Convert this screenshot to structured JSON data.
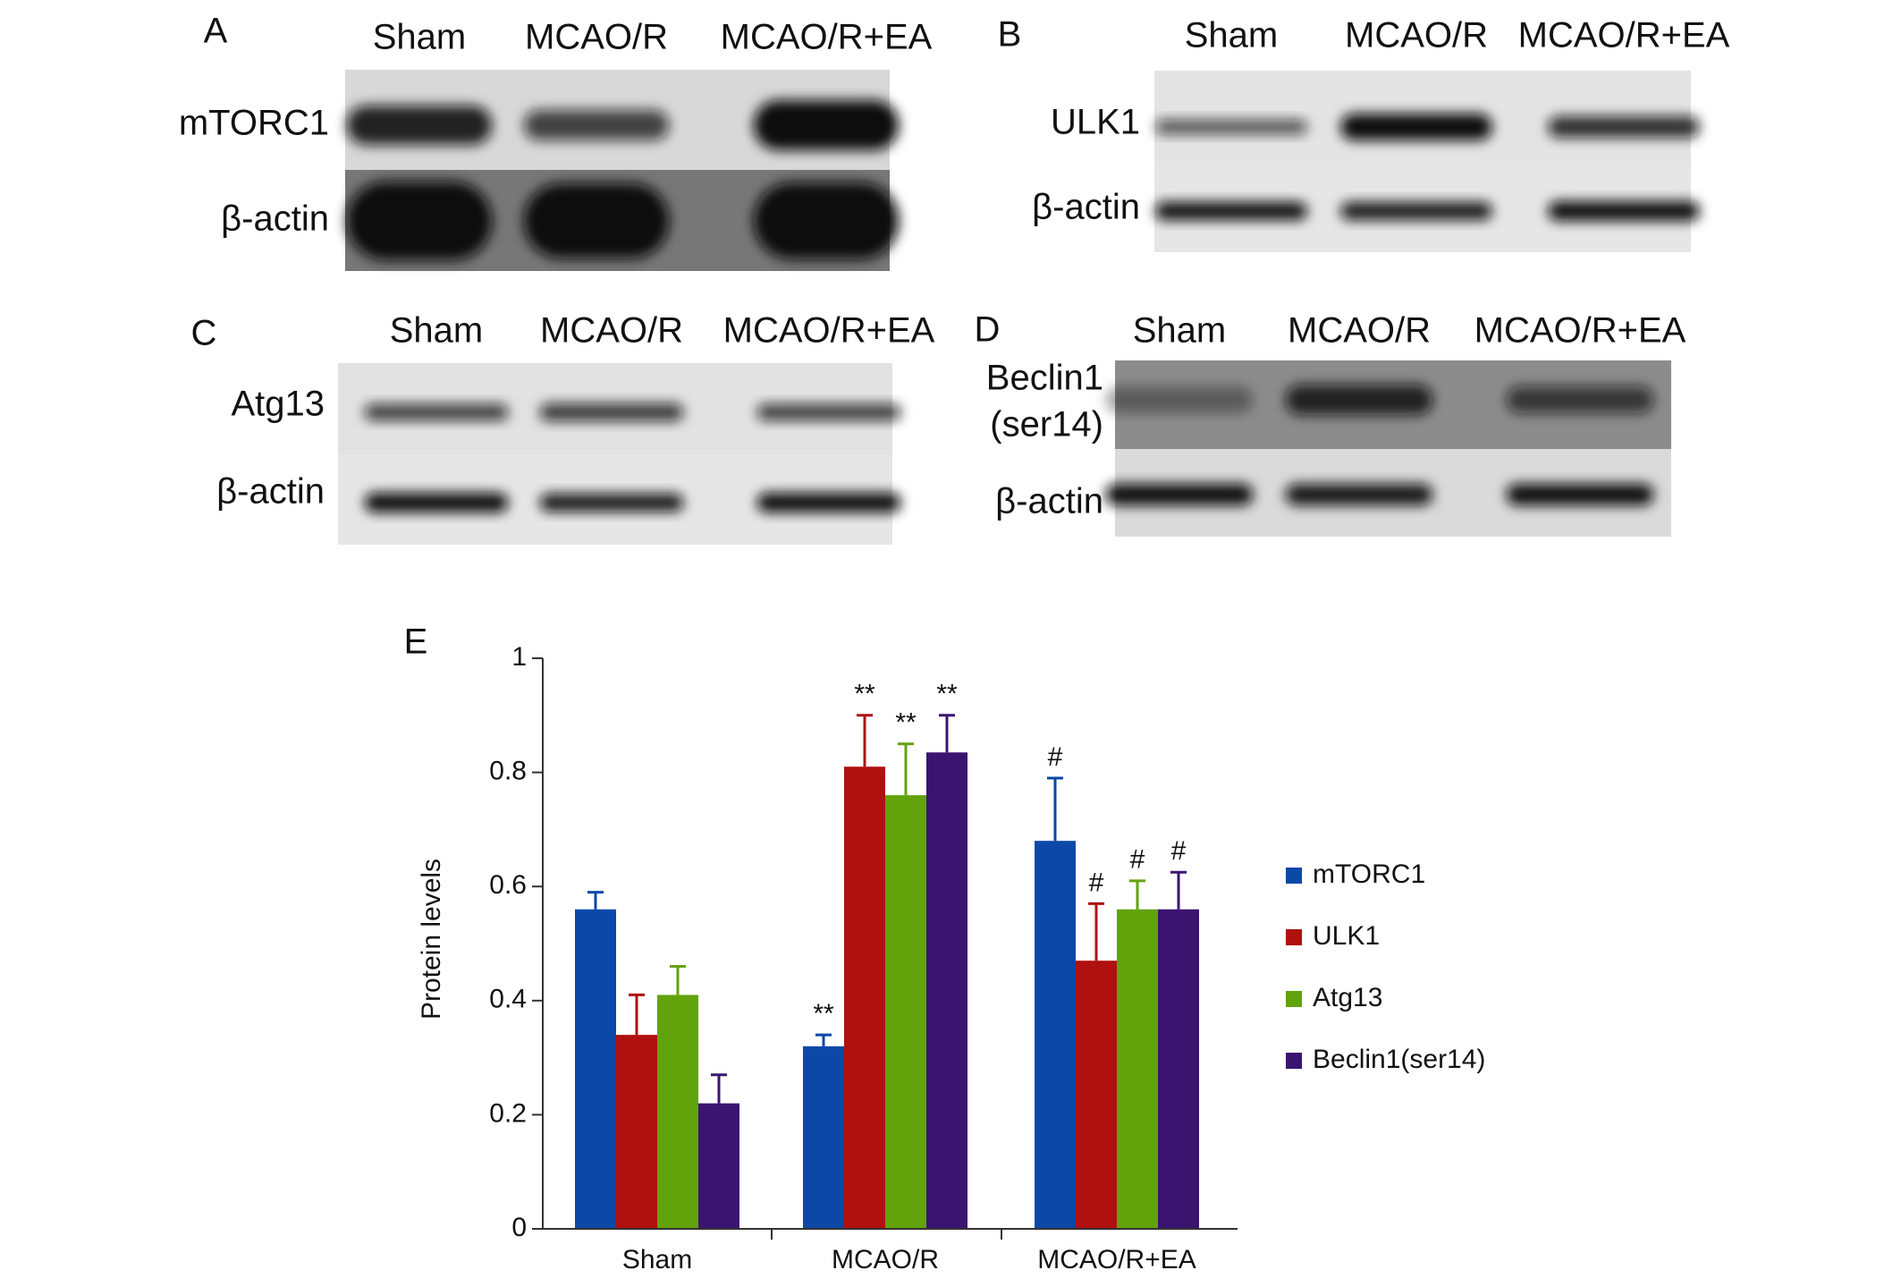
{
  "blots": [
    {
      "label": "A",
      "lanes": [
        "Sham",
        "MCAO/R",
        "MCAO/R+EA"
      ],
      "rows": [
        [
          "mTORC1"
        ],
        [
          "β-actin"
        ]
      ]
    },
    {
      "label": "B",
      "lanes": [
        "Sham",
        "MCAO/R",
        "MCAO/R+EA"
      ],
      "rows": [
        [
          "ULK1"
        ],
        [
          "β-actin"
        ]
      ]
    },
    {
      "label": "C",
      "lanes": [
        "Sham",
        "MCAO/R",
        "MCAO/R+EA"
      ],
      "rows": [
        [
          "Atg13"
        ],
        [
          "β-actin"
        ]
      ]
    },
    {
      "label": "D",
      "lanes": [
        "Sham",
        "MCAO/R",
        "MCAO/R+EA"
      ],
      "rows": [
        [
          "Beclin1",
          "(ser14)"
        ],
        [
          "β-actin"
        ]
      ]
    }
  ],
  "chart_data": {
    "type": "bar",
    "panel_label": "E",
    "ylabel": "Protein levels",
    "categories": [
      "Sham",
      "MCAO/R",
      "MCAO/R+EA"
    ],
    "ylim": [
      0,
      1
    ],
    "yticks": [
      0,
      0.2,
      0.4,
      0.6,
      0.8,
      1
    ],
    "series": [
      {
        "name": "mTORC1",
        "color": "#0b48a8",
        "values": [
          0.56,
          0.32,
          0.68
        ],
        "errors": [
          0.03,
          0.02,
          0.11
        ],
        "markers": [
          null,
          "**",
          "#"
        ]
      },
      {
        "name": "ULK1",
        "color": "#b01010",
        "values": [
          0.34,
          0.81,
          0.47
        ],
        "errors": [
          0.07,
          0.09,
          0.1
        ],
        "markers": [
          null,
          "**",
          "#"
        ]
      },
      {
        "name": "Atg13",
        "color": "#62a30c",
        "values": [
          0.41,
          0.76,
          0.56
        ],
        "errors": [
          0.05,
          0.09,
          0.05
        ],
        "markers": [
          null,
          "**",
          "#"
        ]
      },
      {
        "name": "Beclin1(ser14)",
        "color": "#3b1470",
        "values": [
          0.22,
          0.835,
          0.56
        ],
        "errors": [
          0.05,
          0.065,
          0.065
        ],
        "markers": [
          null,
          "**",
          "#"
        ]
      }
    ]
  }
}
